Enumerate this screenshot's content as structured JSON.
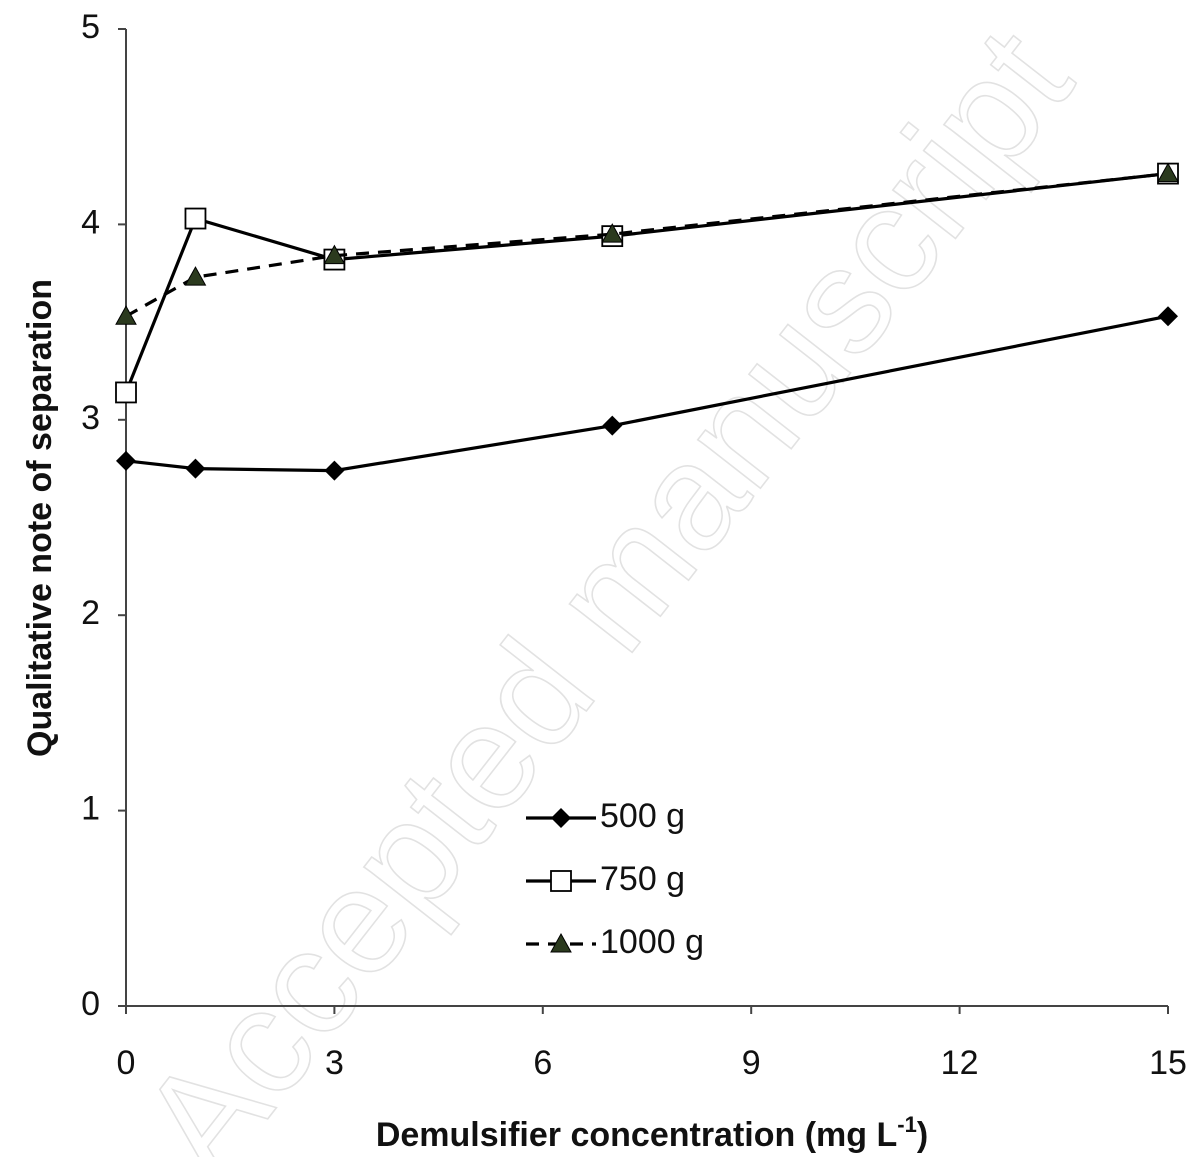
{
  "chart_data": {
    "type": "line",
    "title": "",
    "xlabel": "Demulsifier concentration (mg L",
    "xlabel_sup": "-1",
    "xlabel_close": ")",
    "ylabel": "Qualitative note of separation",
    "xlim": [
      0,
      15
    ],
    "ylim": [
      0,
      5
    ],
    "xticks": [
      0,
      3,
      6,
      9,
      12,
      15
    ],
    "yticks": [
      0,
      1,
      2,
      3,
      4,
      5
    ],
    "grid": false,
    "legend_position": "bottom-center",
    "watermark": "Accepted manuscript",
    "series": [
      {
        "name": "500 g",
        "marker": "diamond",
        "line": "solid",
        "color": "#000000",
        "points": [
          [
            0,
            2.79
          ],
          [
            1,
            2.75
          ],
          [
            3,
            2.74
          ],
          [
            7,
            2.97
          ],
          [
            15,
            3.53
          ]
        ]
      },
      {
        "name": "750 g",
        "marker": "open-square",
        "line": "solid",
        "color": "#000000",
        "points": [
          [
            0,
            3.14
          ],
          [
            1,
            4.03
          ],
          [
            3,
            3.82
          ],
          [
            7,
            3.94
          ],
          [
            15,
            4.26
          ]
        ]
      },
      {
        "name": "1000 g",
        "marker": "filled-triangle",
        "line": "dashed",
        "color": "#000000",
        "marker_fill": "#2b3a1e",
        "points": [
          [
            0,
            3.53
          ],
          [
            1,
            3.73
          ],
          [
            3,
            3.84
          ],
          [
            7,
            3.95
          ],
          [
            15,
            4.26
          ]
        ]
      }
    ]
  }
}
